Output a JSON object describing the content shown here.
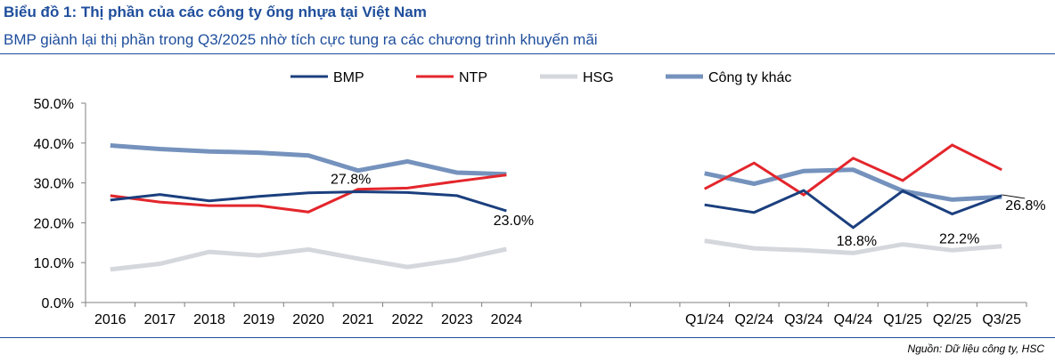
{
  "header": {
    "title": "Biểu đồ 1: Thị phần của các công ty ống nhựa tại Việt Nam",
    "subtitle": "BMP giành lại thị phần trong Q3/2025 nhờ tích cực tung ra các chương trình khuyến mãi"
  },
  "footer": {
    "source": "Nguồn: Dữ liệu công ty, HSC"
  },
  "chart_data": {
    "type": "line",
    "title": "Biểu đồ 1: Thị phần của các công ty ống nhựa tại Việt Nam",
    "subtitle": "BMP giành lại thị phần trong Q3/2025 nhờ tích cực tung ra các chương trình khuyến mãi",
    "xlabel": "",
    "ylabel": "",
    "ylim": [
      0,
      0.5
    ],
    "yticks": [
      0,
      0.1,
      0.2,
      0.3,
      0.4,
      0.5
    ],
    "ytick_labels": [
      "0.0%",
      "10.0%",
      "20.0%",
      "30.0%",
      "40.0%",
      "50.0%"
    ],
    "grid": false,
    "legend_position": "top",
    "categories": [
      "2016",
      "2017",
      "2018",
      "2019",
      "2020",
      "2021",
      "2022",
      "2023",
      "2024",
      "",
      "",
      "",
      "Q1/24",
      "Q2/24",
      "Q3/24",
      "Q4/24",
      "Q1/25",
      "Q2/25",
      "Q3/25"
    ],
    "segments": [
      [
        0,
        8
      ],
      [
        12,
        18
      ]
    ],
    "series": [
      {
        "name": "BMP",
        "color": "#1b3f7e",
        "width": 3,
        "values": [
          0.257,
          0.271,
          0.255,
          0.266,
          0.275,
          0.278,
          0.276,
          0.268,
          0.23,
          null,
          null,
          null,
          0.245,
          0.226,
          0.281,
          0.188,
          0.28,
          0.222,
          0.268
        ]
      },
      {
        "name": "NTP",
        "color": "#e3262c",
        "width": 3,
        "values": [
          0.268,
          0.252,
          0.243,
          0.243,
          0.227,
          0.284,
          0.287,
          0.304,
          0.32,
          null,
          null,
          null,
          0.285,
          0.35,
          0.27,
          0.362,
          0.306,
          0.395,
          0.333
        ]
      },
      {
        "name": "HSG",
        "color": "#d4d7dc",
        "width": 5,
        "values": [
          0.083,
          0.097,
          0.127,
          0.118,
          0.133,
          0.11,
          0.089,
          0.107,
          0.134,
          null,
          null,
          null,
          0.155,
          0.136,
          0.131,
          0.124,
          0.146,
          0.131,
          0.141
        ]
      },
      {
        "name": "Công ty khác",
        "color": "#7592bd",
        "width": 5,
        "values": [
          0.394,
          0.385,
          0.379,
          0.376,
          0.369,
          0.331,
          0.354,
          0.326,
          0.322,
          null,
          null,
          null,
          0.324,
          0.298,
          0.33,
          0.333,
          0.28,
          0.258,
          0.265
        ]
      }
    ],
    "annotations": [
      {
        "text": "27.8%",
        "series": "BMP",
        "index": 5
      },
      {
        "text": "23.0%",
        "series": "BMP",
        "index": 8
      },
      {
        "text": "18.8%",
        "series": "BMP",
        "index": 15
      },
      {
        "text": "22.2%",
        "series": "BMP",
        "index": 17
      },
      {
        "text": "26.8%",
        "series": "BMP",
        "index": 18
      }
    ]
  }
}
